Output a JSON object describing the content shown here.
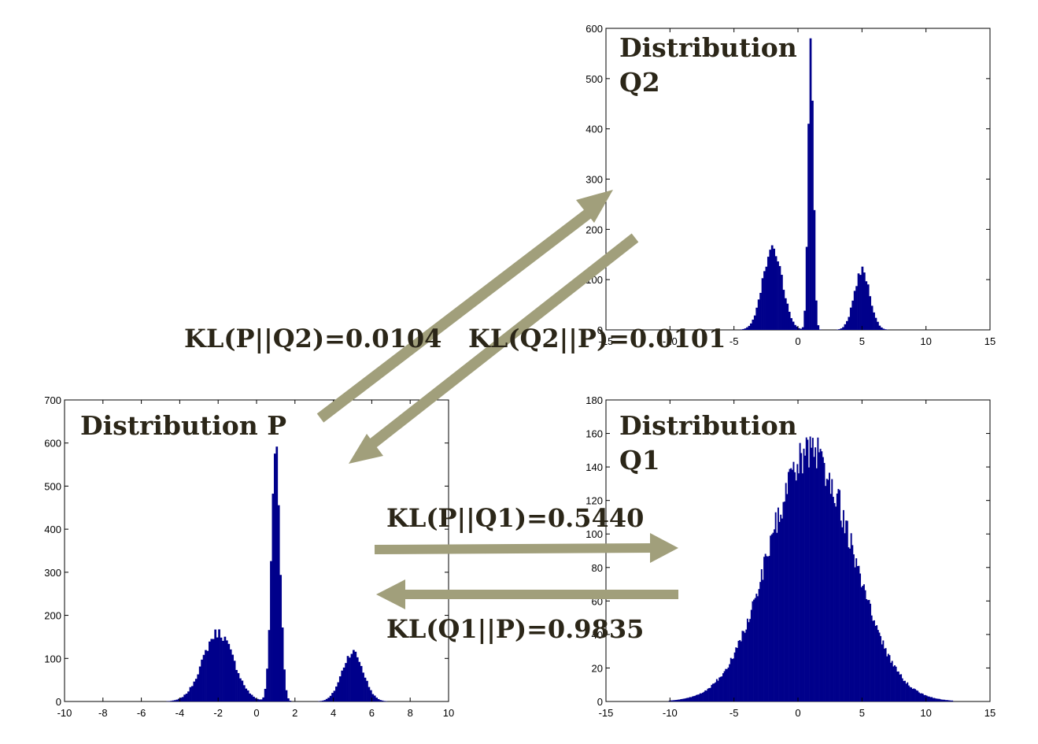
{
  "colors": {
    "bar": "#00008b",
    "arrow": "#a19f7b",
    "text": "#2b2618"
  },
  "chart_data": [
    {
      "type": "bar",
      "id": "P",
      "title_lines": [
        "Distribution P"
      ],
      "xlim": [
        -10,
        10
      ],
      "ylim": [
        0,
        700
      ],
      "xticks": [
        -10,
        -8,
        -6,
        -4,
        -2,
        0,
        2,
        4,
        6,
        8,
        10
      ],
      "yticks": [
        0,
        100,
        200,
        300,
        400,
        500,
        600,
        700
      ],
      "bin_width": 0.1,
      "modes": [
        {
          "center": -2,
          "sigma": 0.8,
          "peak": 160
        },
        {
          "center": 1,
          "sigma": 0.22,
          "peak": 600
        },
        {
          "center": 5,
          "sigma": 0.55,
          "peak": 115
        }
      ],
      "xlabel": "",
      "ylabel": "",
      "grid": false
    },
    {
      "type": "bar",
      "id": "Q2",
      "title_lines": [
        "Distribution",
        "Q2"
      ],
      "xlim": [
        -15,
        15
      ],
      "ylim": [
        0,
        600
      ],
      "xticks": [
        -15,
        -10,
        -5,
        0,
        5,
        10,
        15
      ],
      "yticks": [
        0,
        100,
        200,
        300,
        400,
        500,
        600
      ],
      "bin_width": 0.15,
      "modes": [
        {
          "center": -2,
          "sigma": 0.75,
          "peak": 165
        },
        {
          "center": 1,
          "sigma": 0.2,
          "peak": 585
        },
        {
          "center": 5,
          "sigma": 0.6,
          "peak": 120
        }
      ],
      "xlabel": "",
      "ylabel": "",
      "grid": false
    },
    {
      "type": "bar",
      "id": "Q1",
      "title_lines": [
        "Distribution",
        "Q1"
      ],
      "xlim": [
        -15,
        15
      ],
      "ylim": [
        0,
        180
      ],
      "xticks": [
        -15,
        -10,
        -5,
        0,
        5,
        10,
        15
      ],
      "yticks": [
        0,
        20,
        40,
        60,
        80,
        100,
        120,
        140,
        160,
        180
      ],
      "bin_width": 0.1,
      "modes": [
        {
          "center": 1,
          "sigma": 3.3,
          "peak": 148
        }
      ],
      "xlabel": "",
      "ylabel": "",
      "grid": false
    }
  ],
  "annotations": {
    "kl_p_q2": "KL(P||Q2)=0.0104",
    "kl_q2_p": "KL(Q2||P)=0.0101",
    "kl_p_q1": "KL(P||Q1)=0.5440",
    "kl_q1_p": "KL(Q1||P)=0.9835"
  }
}
